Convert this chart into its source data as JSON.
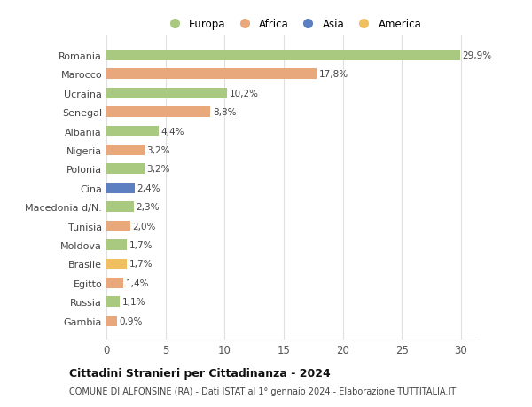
{
  "countries": [
    "Romania",
    "Marocco",
    "Ucraina",
    "Senegal",
    "Albania",
    "Nigeria",
    "Polonia",
    "Cina",
    "Macedonia d/N.",
    "Tunisia",
    "Moldova",
    "Brasile",
    "Egitto",
    "Russia",
    "Gambia"
  ],
  "values": [
    29.9,
    17.8,
    10.2,
    8.8,
    4.4,
    3.2,
    3.2,
    2.4,
    2.3,
    2.0,
    1.7,
    1.7,
    1.4,
    1.1,
    0.9
  ],
  "labels": [
    "29,9%",
    "17,8%",
    "10,2%",
    "8,8%",
    "4,4%",
    "3,2%",
    "3,2%",
    "2,4%",
    "2,3%",
    "2,0%",
    "1,7%",
    "1,7%",
    "1,4%",
    "1,1%",
    "0,9%"
  ],
  "continents": [
    "Europa",
    "Africa",
    "Europa",
    "Africa",
    "Europa",
    "Africa",
    "Europa",
    "Asia",
    "Europa",
    "Africa",
    "Europa",
    "America",
    "Africa",
    "Europa",
    "Africa"
  ],
  "colors": {
    "Europa": "#a8c97f",
    "Africa": "#e8a87c",
    "Asia": "#5b7fc1",
    "America": "#f0c060"
  },
  "legend_order": [
    "Europa",
    "Africa",
    "Asia",
    "America"
  ],
  "title": "Cittadini Stranieri per Cittadinanza - 2024",
  "subtitle": "COMUNE DI ALFONSINE (RA) - Dati ISTAT al 1° gennaio 2024 - Elaborazione TUTTITALIA.IT",
  "xlim": [
    0,
    31.5
  ],
  "xticks": [
    0,
    5,
    10,
    15,
    20,
    25,
    30
  ],
  "bg_color": "#ffffff",
  "grid_color": "#e0e0e0",
  "bar_height": 0.55
}
